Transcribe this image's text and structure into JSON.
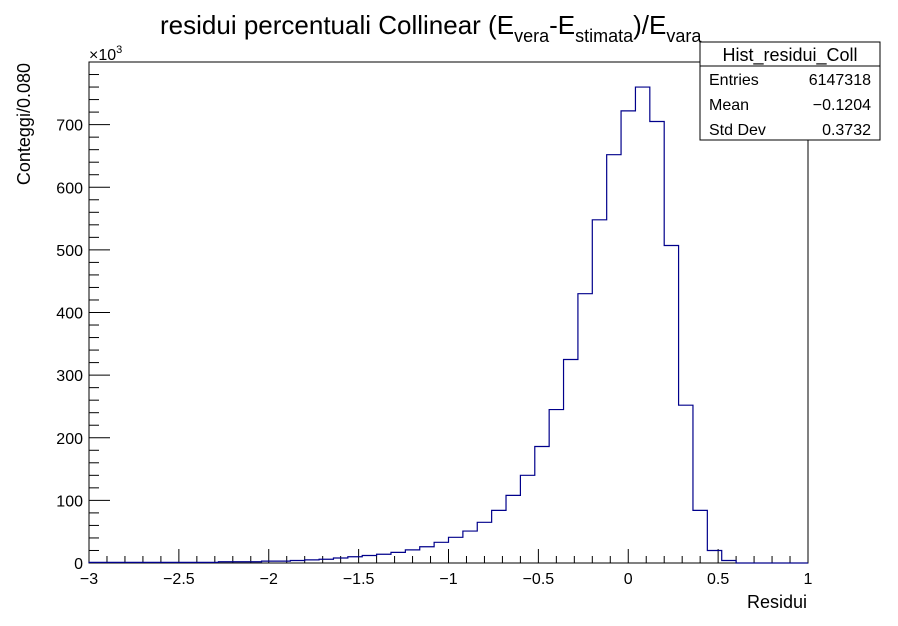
{
  "chart_data": {
    "type": "bar",
    "title_main": "residui percentuali Collinear (E",
    "title_sub1": "vera",
    "title_mid": "-E",
    "title_sub2": "stimata",
    "title_end": ")/E",
    "title_sub3": "vara",
    "xlabel": "Residui",
    "ylabel": "Conteggi/0.080",
    "y_multiplier": "×10",
    "y_multiplier_exp": "3",
    "xlim": [
      -3,
      1
    ],
    "ylim": [
      0,
      800
    ],
    "x_ticks": [
      -3,
      -2.5,
      -2,
      -1.5,
      -1,
      -0.5,
      0,
      0.5,
      1
    ],
    "x_tick_labels": [
      "−3",
      "−2.5",
      "−2",
      "−1.5",
      "−1",
      "−0.5",
      "0",
      "0.5",
      "1"
    ],
    "y_ticks": [
      0,
      100,
      200,
      300,
      400,
      500,
      600,
      700
    ],
    "y_tick_labels": [
      "0",
      "100",
      "200",
      "300",
      "400",
      "500",
      "600",
      "700"
    ],
    "bin_edges_start": -3.0,
    "bin_width": 0.08,
    "values": [
      1,
      1,
      1,
      1,
      1,
      1,
      1,
      1,
      1,
      2,
      2,
      2,
      3,
      3,
      4,
      5,
      6,
      8,
      10,
      12,
      14,
      17,
      21,
      26,
      33,
      41,
      51,
      65,
      84,
      108,
      140,
      186,
      245,
      325,
      430,
      548,
      652,
      722,
      760,
      705,
      507,
      252,
      84,
      20,
      4,
      0,
      0,
      0,
      0,
      0
    ],
    "line_color": "#00008b",
    "grid": false,
    "legend_placement": "top-right",
    "stats_box": {
      "name": "Hist_residui_Coll",
      "rows": [
        {
          "label": "Entries",
          "value": "6147318"
        },
        {
          "label": "Mean",
          "value": "−0.1204"
        },
        {
          "label": "Std Dev",
          "value": "0.3732"
        }
      ]
    }
  }
}
